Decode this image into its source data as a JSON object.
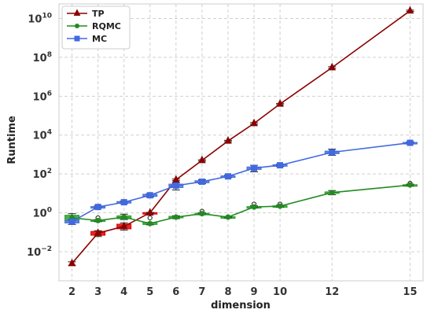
{
  "chart_data": {
    "type": "line",
    "xlabel": "dimension",
    "ylabel": "Runtime",
    "x_ticks": [
      2,
      3,
      4,
      5,
      6,
      7,
      8,
      9,
      10,
      12,
      15
    ],
    "y_scale": "log",
    "y_ticks": [
      {
        "value": 0.01,
        "base": "10",
        "exp": "−2"
      },
      {
        "value": 1,
        "base": "10",
        "exp": "0"
      },
      {
        "value": 100,
        "base": "10",
        "exp": "2"
      },
      {
        "value": 10000,
        "base": "10",
        "exp": "4"
      },
      {
        "value": 1000000,
        "base": "10",
        "exp": "6"
      },
      {
        "value": 100000000,
        "base": "10",
        "exp": "8"
      },
      {
        "value": 10000000000,
        "base": "10",
        "exp": "10"
      }
    ],
    "xlim": [
      1.5,
      15.5
    ],
    "ylim_log10": [
      -3.5,
      10.75
    ],
    "grid": true,
    "legend_position": "top-left",
    "series": [
      {
        "name": "TP",
        "color": "#8b0000",
        "box_color": "#dd0000",
        "marker": "triangle",
        "x": [
          2,
          3,
          4,
          5,
          6,
          7,
          8,
          9,
          10,
          12,
          15
        ],
        "y": [
          0.0025,
          0.09,
          0.2,
          1.0,
          50,
          500,
          5000,
          40000,
          400000,
          30000000,
          25000000000
        ],
        "err_low": [
          0.002,
          0.06,
          0.13,
          0.95,
          45,
          460,
          4600,
          36000,
          370000,
          27000000,
          23000000000
        ],
        "err_high": [
          0.003,
          0.12,
          0.3,
          1.05,
          55,
          540,
          5400,
          44000,
          430000,
          33000000,
          27000000000
        ],
        "box": [
          null,
          [
            0.07,
            0.11
          ],
          [
            0.15,
            0.26
          ],
          [
            0.97,
            1.03
          ],
          null,
          null,
          null,
          null,
          null,
          null,
          null
        ],
        "outliers": [
          [],
          [],
          [],
          [],
          [],
          [],
          [],
          [],
          [],
          [],
          []
        ]
      },
      {
        "name": "RQMC",
        "color": "#228b22",
        "box_color": "#2ca02c",
        "marker": "circle",
        "x": [
          2,
          3,
          4,
          5,
          6,
          7,
          8,
          9,
          10,
          12,
          15
        ],
        "y": [
          0.55,
          0.4,
          0.6,
          0.28,
          0.6,
          0.9,
          0.6,
          2.0,
          2.2,
          11,
          27
        ],
        "err_low": [
          0.3,
          0.35,
          0.45,
          0.24,
          0.5,
          0.8,
          0.55,
          1.8,
          2.0,
          8.5,
          24
        ],
        "err_high": [
          0.9,
          0.45,
          0.85,
          0.32,
          0.7,
          1.0,
          0.65,
          2.3,
          2.5,
          14,
          30
        ],
        "box": [
          [
            0.4,
            0.75
          ],
          [
            0.37,
            0.43
          ],
          [
            0.5,
            0.7
          ],
          [
            0.25,
            0.31
          ],
          [
            0.55,
            0.66
          ],
          [
            0.85,
            0.95
          ],
          [
            0.57,
            0.63
          ],
          [
            1.9,
            2.1
          ],
          [
            2.1,
            2.3
          ],
          [
            10,
            12
          ],
          [
            26,
            28
          ]
        ],
        "outliers": [
          [],
          [
            0.55
          ],
          [],
          [
            0.55
          ],
          [],
          [
            1.2
          ],
          [],
          [
            2.8
          ],
          [
            2.8
          ],
          [],
          [
            33
          ]
        ]
      },
      {
        "name": "MC",
        "color": "#4169e1",
        "box_color": "#4a6fd8",
        "marker": "square",
        "x": [
          2,
          3,
          4,
          5,
          6,
          7,
          8,
          9,
          10,
          12,
          15
        ],
        "y": [
          0.35,
          2.0,
          3.5,
          8,
          25,
          40,
          75,
          200,
          280,
          1300,
          4000
        ],
        "err_low": [
          0.25,
          1.8,
          3.0,
          6.5,
          15,
          32,
          65,
          130,
          240,
          900,
          3500
        ],
        "err_high": [
          0.45,
          2.3,
          4.0,
          9.5,
          35,
          50,
          85,
          280,
          320,
          1900,
          4500
        ],
        "box": [
          [
            0.3,
            0.4
          ],
          [
            1.9,
            2.1
          ],
          [
            3.2,
            3.8
          ],
          [
            7,
            9
          ],
          [
            20,
            30
          ],
          [
            35,
            45
          ],
          [
            70,
            80
          ],
          [
            170,
            230
          ],
          [
            260,
            300
          ],
          [
            1100,
            1500
          ],
          [
            3800,
            4200
          ]
        ],
        "outliers": [
          [],
          [],
          [],
          [],
          [],
          [],
          [],
          [],
          [],
          [],
          []
        ]
      }
    ]
  }
}
